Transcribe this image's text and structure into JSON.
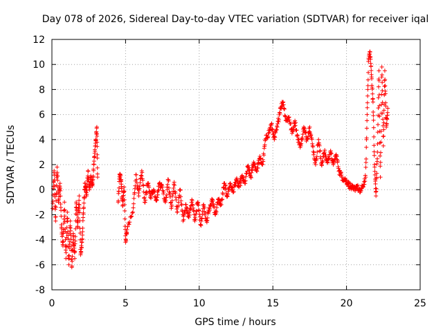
{
  "chart_data": {
    "type": "scatter",
    "title": "Day 078 of 2026, Sidereal Day-to-day VTEC variation (SDTVAR) for receiver iqal",
    "xlabel": "GPS time / hours",
    "ylabel": "SDTVAR / TECUs",
    "xlim": [
      0,
      25
    ],
    "ylim": [
      -8,
      12
    ],
    "xticks": [
      "0",
      "5",
      "10",
      "15",
      "20",
      "25"
    ],
    "yticks": [
      "-8",
      "-6",
      "-4",
      "-2",
      "0",
      "2",
      "4",
      "6",
      "8",
      "10",
      "12"
    ],
    "grid": true,
    "marker": "+",
    "series": [
      {
        "name": "SDTVAR",
        "color": "#ff0000",
        "anchors": [
          [
            0.05,
            -1.5
          ],
          [
            0.15,
            1.5
          ],
          [
            0.25,
            -2.5
          ],
          [
            0.35,
            1.8
          ],
          [
            0.45,
            -1.0
          ],
          [
            0.55,
            0.5
          ],
          [
            0.65,
            -3.0
          ],
          [
            0.75,
            -4.5
          ],
          [
            0.85,
            -1.0
          ],
          [
            0.95,
            -5.5
          ],
          [
            1.05,
            -1.8
          ],
          [
            1.15,
            -6.0
          ],
          [
            1.25,
            -2.5
          ],
          [
            1.35,
            -6.2
          ],
          [
            1.45,
            -3.5
          ],
          [
            1.55,
            -5.5
          ],
          [
            1.65,
            -1.0
          ],
          [
            1.75,
            -3.0
          ],
          [
            1.85,
            -0.5
          ],
          [
            1.95,
            -5.2
          ],
          [
            2.05,
            -4.0
          ],
          [
            2.15,
            -1.5
          ],
          [
            2.25,
            0.5
          ],
          [
            2.35,
            -0.5
          ],
          [
            2.45,
            1.5
          ],
          [
            2.55,
            0.0
          ],
          [
            2.65,
            1.0
          ],
          [
            2.75,
            0.3
          ],
          [
            2.85,
            2.0
          ],
          [
            2.95,
            3.5
          ],
          [
            3.05,
            5.0
          ],
          [
            3.1,
            1.0
          ],
          [
            4.5,
            -1.0
          ],
          [
            4.6,
            1.2
          ],
          [
            4.7,
            0.8
          ],
          [
            4.8,
            -1.3
          ],
          [
            4.9,
            0.2
          ],
          [
            5.0,
            -4.2
          ],
          [
            5.1,
            -3.2
          ],
          [
            5.5,
            -1.8
          ],
          [
            5.7,
            1.2
          ],
          [
            5.9,
            -0.5
          ],
          [
            6.1,
            1.5
          ],
          [
            6.3,
            -1.0
          ],
          [
            6.5,
            0.5
          ],
          [
            6.7,
            -0.5
          ],
          [
            6.9,
            0.0
          ],
          [
            7.1,
            -0.8
          ],
          [
            7.3,
            0.5
          ],
          [
            7.5,
            0.2
          ],
          [
            7.7,
            -1.0
          ],
          [
            7.9,
            0.8
          ],
          [
            8.1,
            -1.5
          ],
          [
            8.3,
            0.6
          ],
          [
            8.5,
            -1.8
          ],
          [
            8.7,
            0.0
          ],
          [
            8.9,
            -2.5
          ],
          [
            9.1,
            -1.2
          ],
          [
            9.3,
            -2.2
          ],
          [
            9.5,
            -0.8
          ],
          [
            9.7,
            -2.5
          ],
          [
            9.9,
            -1.0
          ],
          [
            10.1,
            -2.8
          ],
          [
            10.3,
            -1.2
          ],
          [
            10.5,
            -2.5
          ],
          [
            10.7,
            -1.5
          ],
          [
            10.9,
            -0.8
          ],
          [
            11.1,
            -2.0
          ],
          [
            11.3,
            -0.8
          ],
          [
            11.5,
            -1.2
          ],
          [
            11.7,
            0.5
          ],
          [
            11.9,
            -0.5
          ],
          [
            12.1,
            0.5
          ],
          [
            12.3,
            -0.2
          ],
          [
            12.5,
            0.8
          ],
          [
            12.7,
            0.2
          ],
          [
            12.9,
            1.0
          ],
          [
            13.1,
            0.5
          ],
          [
            13.3,
            1.8
          ],
          [
            13.5,
            1.0
          ],
          [
            13.7,
            2.2
          ],
          [
            13.9,
            1.5
          ],
          [
            14.1,
            2.5
          ],
          [
            14.3,
            2.0
          ],
          [
            14.5,
            4.0
          ],
          [
            14.7,
            4.5
          ],
          [
            14.9,
            5.2
          ],
          [
            15.1,
            4.0
          ],
          [
            15.3,
            5.0
          ],
          [
            15.5,
            6.5
          ],
          [
            15.7,
            7.0
          ],
          [
            15.9,
            5.5
          ],
          [
            16.1,
            5.8
          ],
          [
            16.3,
            4.5
          ],
          [
            16.5,
            5.5
          ],
          [
            16.7,
            4.0
          ],
          [
            16.9,
            3.5
          ],
          [
            17.1,
            5.0
          ],
          [
            17.3,
            4.0
          ],
          [
            17.5,
            5.0
          ],
          [
            17.7,
            3.5
          ],
          [
            17.9,
            2.0
          ],
          [
            18.1,
            4.0
          ],
          [
            18.3,
            2.0
          ],
          [
            18.5,
            3.0
          ],
          [
            18.7,
            2.2
          ],
          [
            18.9,
            3.0
          ],
          [
            19.1,
            2.0
          ],
          [
            19.3,
            2.8
          ],
          [
            19.5,
            1.5
          ],
          [
            19.7,
            1.0
          ],
          [
            19.9,
            0.8
          ],
          [
            20.1,
            0.5
          ],
          [
            20.3,
            0.2
          ],
          [
            20.5,
            0.0
          ],
          [
            20.7,
            0.3
          ],
          [
            20.9,
            -0.2
          ],
          [
            21.1,
            0.2
          ],
          [
            21.3,
            1.0
          ],
          [
            21.4,
            6.0
          ],
          [
            21.5,
            10.5
          ],
          [
            21.6,
            11.0
          ],
          [
            21.7,
            9.0
          ],
          [
            21.8,
            7.0
          ],
          [
            21.9,
            2.0
          ],
          [
            22.0,
            -0.5
          ],
          [
            22.1,
            3.0
          ],
          [
            22.2,
            9.5
          ],
          [
            22.3,
            1.0
          ],
          [
            22.4,
            9.8
          ],
          [
            22.5,
            3.5
          ],
          [
            22.6,
            9.5
          ],
          [
            22.7,
            5.0
          ],
          [
            22.8,
            6.5
          ]
        ]
      }
    ]
  }
}
